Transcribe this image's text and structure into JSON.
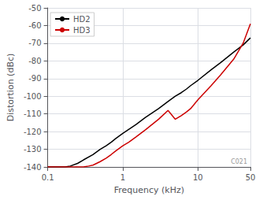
{
  "chart_data": {
    "type": "line",
    "xlabel": "Frequency (kHz)",
    "ylabel": "Distortion (dBc)",
    "annotation": "C021",
    "log": "x",
    "xlim": [
      0.1,
      50
    ],
    "ylim": [
      -140,
      -50
    ],
    "xticks": [
      0.1,
      1,
      10,
      50
    ],
    "yticks": [
      -140,
      -130,
      -120,
      -110,
      -100,
      -90,
      -80,
      -70,
      -60,
      -50
    ],
    "grid": true,
    "legend": "upper left",
    "series": [
      {
        "name": "HD2",
        "color": "#000000",
        "x": [
          0.1,
          0.13,
          0.17,
          0.2,
          0.25,
          0.3,
          0.4,
          0.5,
          0.6,
          0.7,
          0.8,
          1.0,
          1.5,
          2.0,
          3.0,
          4.0,
          5.0,
          6.0,
          7.0,
          8.0,
          10.0,
          15.0,
          20.0,
          30.0,
          40.0,
          50.0
        ],
        "values": [
          -140,
          -140,
          -140,
          -139.5,
          -138,
          -136,
          -133,
          -130,
          -128,
          -126,
          -124,
          -121,
          -116,
          -112,
          -107,
          -103,
          -100,
          -98,
          -96,
          -94,
          -91,
          -85,
          -81,
          -75,
          -71,
          -67
        ]
      },
      {
        "name": "HD3",
        "color": "#cc0000",
        "x": [
          0.1,
          0.13,
          0.17,
          0.2,
          0.25,
          0.3,
          0.35,
          0.4,
          0.5,
          0.6,
          0.7,
          0.8,
          1.0,
          1.2,
          1.5,
          2.0,
          3.0,
          4.0,
          5.0,
          6.0,
          7.0,
          8.0,
          10.0,
          15.0,
          20.0,
          30.0,
          40.0,
          50.0
        ],
        "values": [
          -140,
          -140,
          -140,
          -140,
          -140,
          -140,
          -139.5,
          -139,
          -137,
          -135,
          -133,
          -131,
          -128,
          -126,
          -123,
          -119,
          -113,
          -108,
          -113,
          -111,
          -109,
          -107,
          -102,
          -94,
          -88,
          -79,
          -70,
          -59
        ]
      }
    ]
  }
}
